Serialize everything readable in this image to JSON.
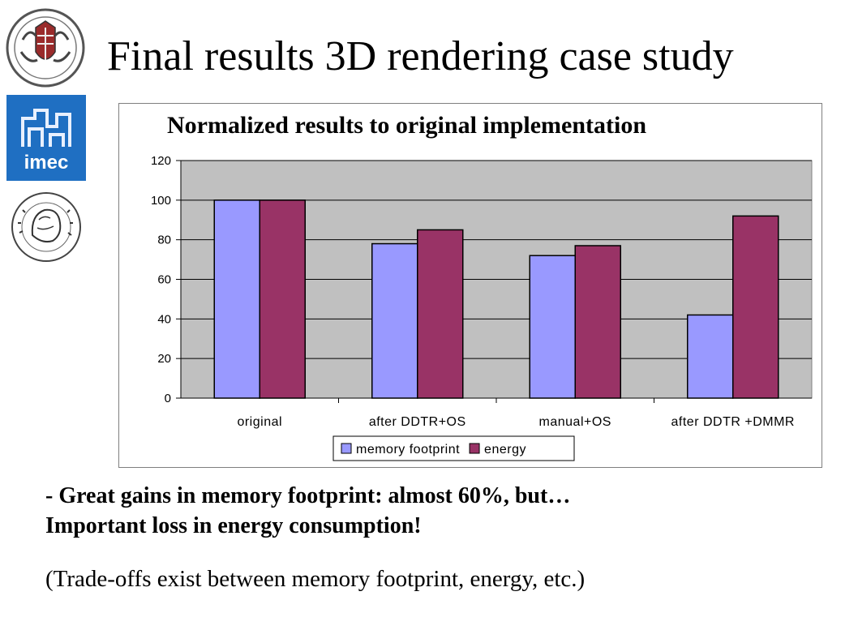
{
  "slide": {
    "title": "Final results 3D rendering case study",
    "bullets": [
      "- Great gains in memory footprint: almost 60%, but…",
      "Important loss in energy consumption!",
      "(Trade-offs exist between memory footprint, energy, etc.)"
    ]
  },
  "logos": {
    "imec_text": "imec"
  },
  "chart_data": {
    "type": "bar",
    "title": "Normalized results to original implementation",
    "categories": [
      "original",
      "after DDTR+OS",
      "manual+OS",
      "after DDTR +DMMR"
    ],
    "series": [
      {
        "name": "memory footprint",
        "values": [
          100,
          78,
          72,
          42
        ],
        "color": "#9999ff"
      },
      {
        "name": "energy",
        "values": [
          100,
          85,
          77,
          92
        ],
        "color": "#993366"
      }
    ],
    "ylim": [
      0,
      120
    ],
    "yticks": [
      0,
      20,
      40,
      60,
      80,
      100,
      120
    ],
    "grid": true,
    "plot_background": "#c0c0c0",
    "legend_position": "bottom"
  }
}
